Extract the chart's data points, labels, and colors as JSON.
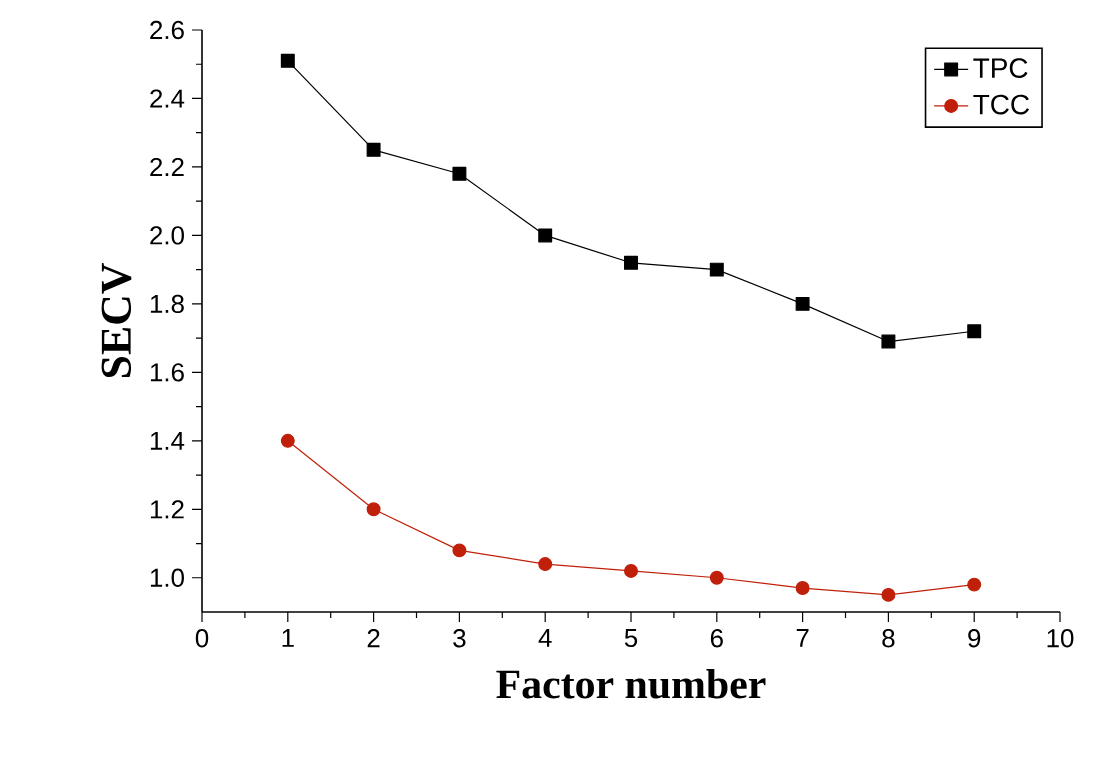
{
  "chart_data": {
    "type": "line",
    "xlabel": "Factor number",
    "ylabel": "SECV",
    "x": [
      1,
      2,
      3,
      4,
      5,
      6,
      7,
      8,
      9
    ],
    "series": [
      {
        "name": "TPC",
        "color": "#000000",
        "marker": "square",
        "values": [
          2.51,
          2.25,
          2.18,
          2.0,
          1.92,
          1.9,
          1.8,
          1.69,
          1.72
        ]
      },
      {
        "name": "TCC",
        "color": "#c0200a",
        "marker": "circle",
        "values": [
          1.4,
          1.2,
          1.08,
          1.04,
          1.02,
          1.0,
          0.97,
          0.95,
          0.98
        ]
      }
    ],
    "xlim": [
      0,
      10
    ],
    "ylim": [
      0.9,
      2.6
    ],
    "xticks": [
      0,
      1,
      2,
      3,
      4,
      5,
      6,
      7,
      8,
      9,
      10
    ],
    "yticks": [
      {
        "value": 1.0,
        "label": "1.0"
      },
      {
        "value": 1.2,
        "label": "1.2"
      },
      {
        "value": 1.4,
        "label": "1.4"
      },
      {
        "value": 1.6,
        "label": "1.6"
      },
      {
        "value": 1.8,
        "label": "1.8"
      },
      {
        "value": 2.0,
        "label": "2.0"
      },
      {
        "value": 2.2,
        "label": "2.2"
      },
      {
        "value": 2.4,
        "label": "2.4"
      },
      {
        "value": 2.6,
        "label": "2.6"
      }
    ],
    "legend": "top right",
    "grid": false
  }
}
